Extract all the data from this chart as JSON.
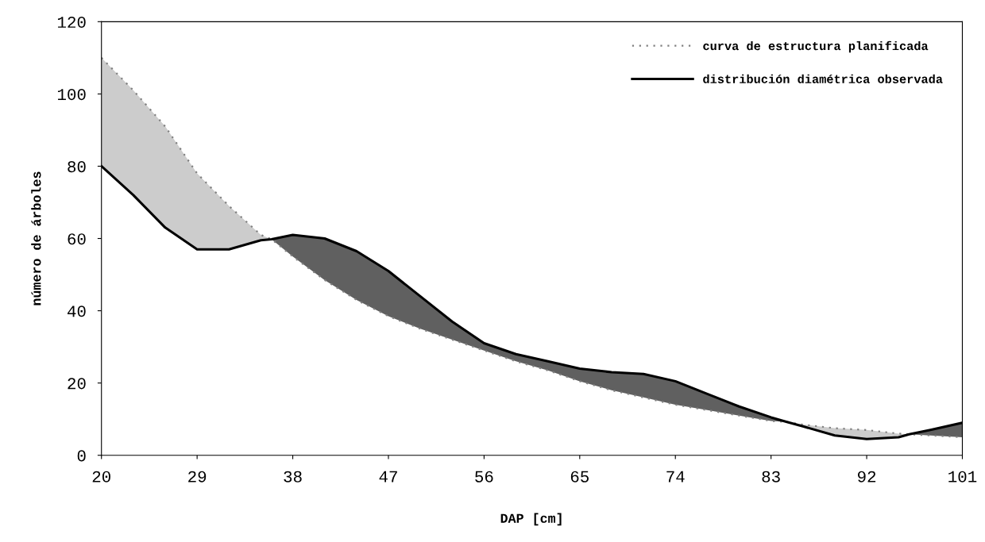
{
  "chart_data": {
    "type": "line",
    "xlabel": "DAP [cm]",
    "ylabel": "número de árboles",
    "x": [
      20,
      23,
      26,
      29,
      32,
      35,
      36,
      38,
      41,
      44,
      47,
      50,
      53,
      56,
      59,
      62,
      65,
      68,
      71,
      74,
      77,
      80,
      83,
      84.5,
      86,
      89,
      92,
      95,
      96,
      98,
      101
    ],
    "series": [
      {
        "name": "curva de estructura planificada",
        "color": "#808080",
        "line_style": "dotted",
        "values": [
          110,
          101,
          91,
          78,
          69,
          61,
          59.8,
          55,
          48.5,
          43,
          38.5,
          35,
          32,
          29,
          26,
          23.5,
          20.5,
          18,
          16,
          14,
          12.5,
          11,
          9.5,
          9.2,
          8.5,
          7.5,
          7,
          6,
          5.8,
          5.5,
          5
        ],
        "lower": [
          80,
          72,
          63,
          57,
          57,
          59.5,
          59.8,
          null,
          null,
          null,
          null,
          null,
          null,
          null,
          null,
          null,
          null,
          null,
          null,
          null,
          null,
          null,
          null,
          9.2,
          8,
          5.5,
          4.5,
          5,
          5.8,
          null,
          null
        ],
        "upper": [
          110,
          101,
          91,
          78,
          69,
          61,
          59.8,
          null,
          null,
          null,
          null,
          null,
          null,
          null,
          null,
          null,
          null,
          null,
          null,
          null,
          null,
          null,
          null,
          9.2,
          8.5,
          7.5,
          7,
          6,
          5.8,
          null,
          null
        ]
      },
      {
        "name": "distribución diamétrica observada",
        "color": "#000000",
        "line_style": "solid",
        "values": [
          80,
          72,
          63,
          57,
          57,
          59.5,
          59.8,
          61,
          60,
          56.5,
          51,
          44,
          37,
          31,
          28,
          26,
          24,
          23,
          22.5,
          20.5,
          17,
          13.5,
          10.5,
          9.2,
          8,
          5.5,
          4.5,
          5,
          5.8,
          7,
          9
        ],
        "lower": [
          null,
          null,
          null,
          null,
          null,
          null,
          59.8,
          55,
          48.5,
          43,
          38.5,
          35,
          32,
          29,
          26,
          23.5,
          20.5,
          18,
          16,
          14,
          12.5,
          11,
          9.5,
          9.2,
          null,
          null,
          null,
          null,
          5.8,
          5.5,
          5
        ],
        "upper": [
          null,
          null,
          null,
          null,
          null,
          null,
          59.8,
          61,
          60,
          56.5,
          51,
          44,
          37,
          31,
          28,
          26,
          24,
          23,
          22.5,
          20.5,
          17,
          13.5,
          10.5,
          9.2,
          null,
          null,
          null,
          null,
          5.8,
          7,
          9
        ]
      }
    ],
    "colors": [
      "#cccccc",
      "#606060"
    ],
    "xlim": [
      20,
      101
    ],
    "xticks": [
      20,
      29,
      38,
      47,
      56,
      65,
      74,
      83,
      92,
      101
    ],
    "ylim": [
      0,
      120
    ],
    "yticks": [
      0,
      20,
      40,
      60,
      80,
      100,
      120
    ],
    "grid": false,
    "legend": "top right"
  }
}
